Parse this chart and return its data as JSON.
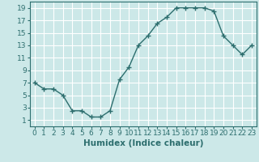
{
  "x": [
    0,
    1,
    2,
    3,
    4,
    5,
    6,
    7,
    8,
    9,
    10,
    11,
    12,
    13,
    14,
    15,
    16,
    17,
    18,
    19,
    20,
    21,
    22,
    23
  ],
  "y": [
    7,
    6,
    6,
    5,
    2.5,
    2.5,
    1.5,
    1.5,
    2.5,
    7.5,
    9.5,
    13,
    14.5,
    16.5,
    17.5,
    19,
    19,
    19,
    19,
    18.5,
    14.5,
    13,
    11.5,
    13
  ],
  "line_color": "#2d6e6e",
  "bg_color": "#cce8e8",
  "grid_color": "#ffffff",
  "xlabel": "Humidex (Indice chaleur)",
  "ylim": [
    0,
    20
  ],
  "xlim": [
    -0.5,
    23.5
  ],
  "yticks": [
    1,
    3,
    5,
    7,
    9,
    11,
    13,
    15,
    17,
    19
  ],
  "xticks": [
    0,
    1,
    2,
    3,
    4,
    5,
    6,
    7,
    8,
    9,
    10,
    11,
    12,
    13,
    14,
    15,
    16,
    17,
    18,
    19,
    20,
    21,
    22,
    23
  ],
  "marker": "+",
  "marker_size": 4,
  "linewidth": 1.0,
  "xlabel_fontsize": 7.5,
  "tick_fontsize": 6.5
}
